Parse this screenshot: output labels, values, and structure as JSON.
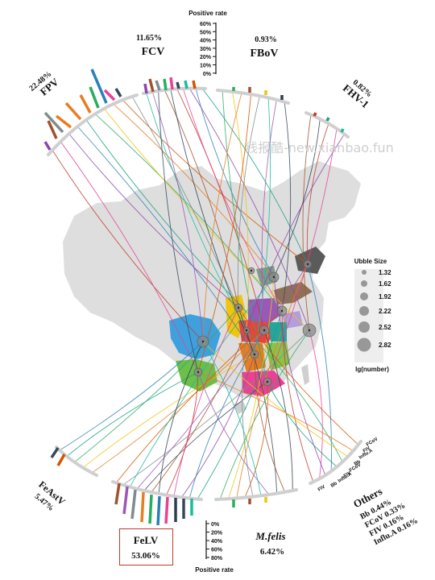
{
  "watermark": "线报酷-new.xianbao.fun",
  "pathogens": {
    "fpv": {
      "name": "FPV",
      "rate": "22.48%"
    },
    "fcv": {
      "name": "FCV",
      "rate": "11.65%"
    },
    "fbov": {
      "name": "FBoV",
      "rate": "0.93%"
    },
    "fhv1": {
      "name": "FHV-1",
      "rate": "0.82%"
    },
    "feastv": {
      "name": "FeAstV",
      "rate": "5.47%"
    },
    "felv": {
      "name": "FeLV",
      "rate": "53.06%"
    },
    "mfelis": {
      "name": "M.felis",
      "rate": "6.42%"
    }
  },
  "others": {
    "title": "Others",
    "lines": [
      "Bb 0.44%",
      "FCoV 0.33%",
      "FIV 0.16%",
      "Influ.A 0.16%"
    ],
    "tick_labels": [
      "FCoV",
      "FIV",
      "Influ.A",
      "Bb",
      "FCoV",
      "FIV",
      "Influ.A",
      "Bb",
      "FIV"
    ]
  },
  "scale_top": {
    "title": "Positive rate",
    "ticks": [
      "60%",
      "50%",
      "40%",
      "30%",
      "20%",
      "10%",
      "0%"
    ]
  },
  "scale_bottom": {
    "title": "Positive rate",
    "ticks": [
      "0%",
      "20%",
      "40%",
      "60%",
      "80%"
    ]
  },
  "bubble_legend": {
    "title": "Ubble Size",
    "values": [
      "1.32",
      "1.62",
      "1.92",
      "2.22",
      "2.52",
      "2.82"
    ],
    "footer": "lg(number)"
  },
  "colors": {
    "map_base": "#dcdcdc",
    "region_palette": [
      "#3fa0dd",
      "#6cbf4a",
      "#f1c40f",
      "#e67e22",
      "#9b59b6",
      "#e84393",
      "#8e7058",
      "#7f8c8d",
      "#2ecc71",
      "#d35400"
    ]
  }
}
